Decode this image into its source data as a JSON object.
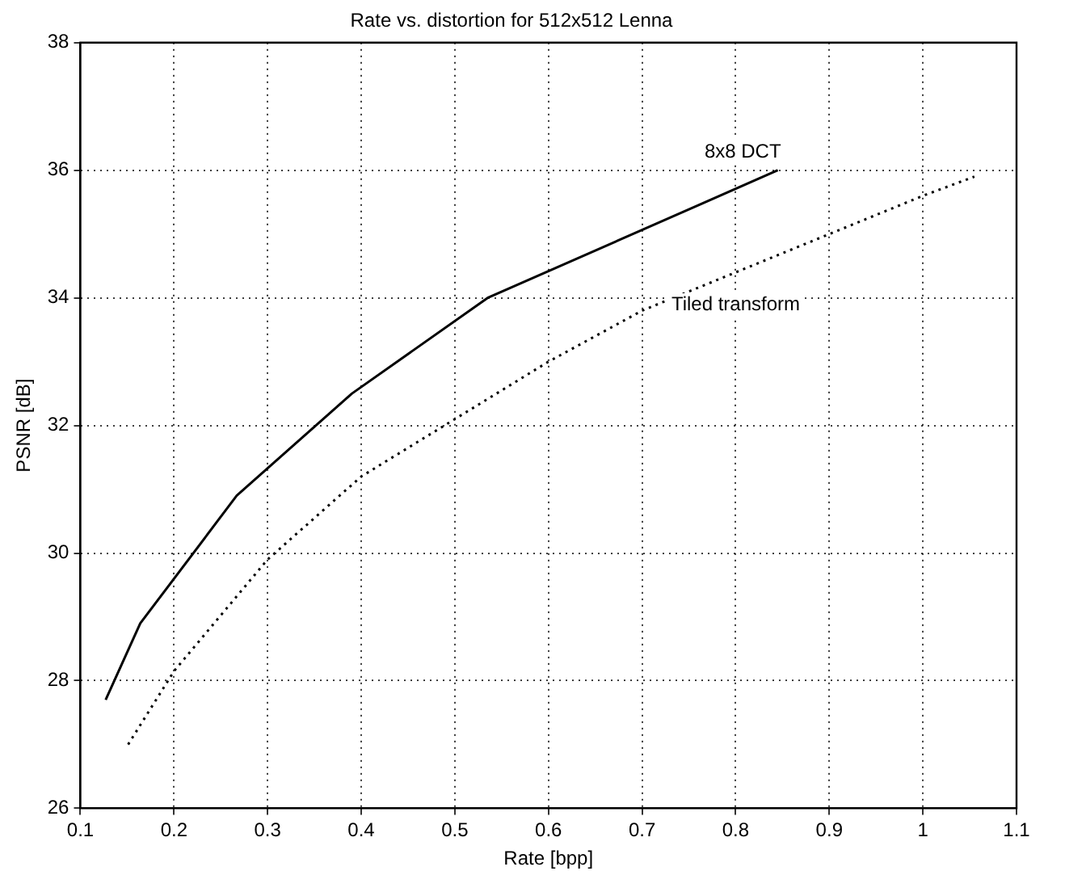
{
  "chart_data": {
    "type": "line",
    "title": "Rate vs. distortion for 512x512 Lenna",
    "xlabel": "Rate [bpp]",
    "ylabel": "PSNR [dB]",
    "xlim": [
      0.1,
      1.1
    ],
    "xticks": [
      0.1,
      0.2,
      0.3,
      0.4,
      0.5,
      0.6,
      0.7,
      0.8,
      0.9,
      1,
      1.1
    ],
    "ylim": [
      26,
      38
    ],
    "yticks": [
      26,
      28,
      30,
      32,
      34,
      36,
      38
    ],
    "grid": true,
    "legend": false,
    "marker": "none",
    "series": [
      {
        "name": "8x8 DCT",
        "color": "#000000",
        "line_style": "solid",
        "x": [
          0.127,
          0.164,
          0.267,
          0.39,
          0.535,
          0.845
        ],
        "values": [
          27.7,
          28.9,
          30.9,
          32.5,
          34.0,
          36.0
        ]
      },
      {
        "name": "Tiled transform",
        "color": "#000000",
        "line_style": "dotted",
        "x": [
          0.151,
          0.2,
          0.3,
          0.4,
          0.5,
          0.6,
          0.7,
          0.8,
          0.9,
          1.0,
          1.055
        ],
        "values": [
          27.0,
          28.15,
          29.9,
          31.2,
          32.1,
          33.0,
          33.8,
          34.4,
          35.0,
          35.6,
          35.9
        ]
      }
    ]
  }
}
